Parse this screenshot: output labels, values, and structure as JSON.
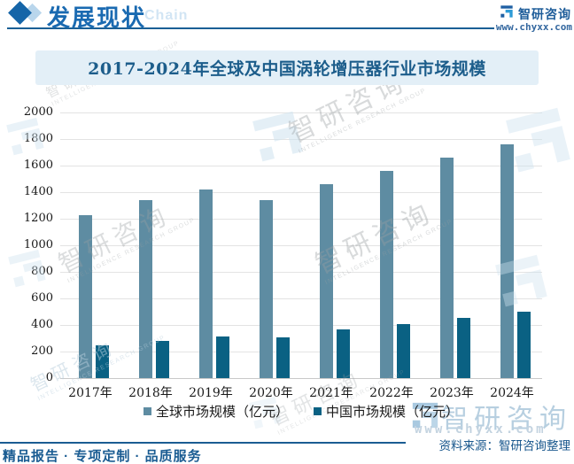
{
  "header": {
    "section_title": "发展现状",
    "section_watermark_text": "Chain",
    "brand_name": "智研咨询",
    "brand_url": "www.chyxx.com"
  },
  "chart_title": "2017-2024年全球及中国涡轮增压器行业市场规模",
  "chart_data": {
    "type": "bar",
    "title": "2017-2024年全球及中国涡轮增压器行业市场规模",
    "categories": [
      "2017年",
      "2018年",
      "2019年",
      "2020年",
      "2021年",
      "2022年",
      "2023年",
      "2024年"
    ],
    "series": [
      {
        "name": "全球市场规模（亿元）",
        "color": "#5e8ca2",
        "values": [
          1230,
          1340,
          1420,
          1340,
          1460,
          1560,
          1660,
          1760
        ]
      },
      {
        "name": "中国市场规模（亿元）",
        "color": "#0a6183",
        "values": [
          250,
          280,
          315,
          310,
          370,
          410,
          455,
          500
        ]
      }
    ],
    "xlabel": "",
    "ylabel": "",
    "ylim": [
      0,
      2000
    ],
    "yticks": [
      0,
      200,
      400,
      600,
      800,
      1000,
      1200,
      1400,
      1600,
      1800,
      2000
    ],
    "grid": true,
    "legend_position": "bottom"
  },
  "watermark": {
    "brand_text": "智研咨询",
    "brand_subtext": "INTELLIGENCE RESEARCH GROUP",
    "brand_url": "www.chyxx.com"
  },
  "footer": {
    "tagline": "精品报告 · 专项定制 · 品质服务",
    "source": "资料来源：智研咨询整理"
  },
  "colors": {
    "accent": "#1a5f95",
    "title_text": "#1c5d8b",
    "title_bar_bg": "#e3eff7",
    "global_bar": "#5e8ca2",
    "china_bar": "#0a6183",
    "grid_line": "#e3e3e3",
    "watermark_blue": "#cfe3f0"
  }
}
